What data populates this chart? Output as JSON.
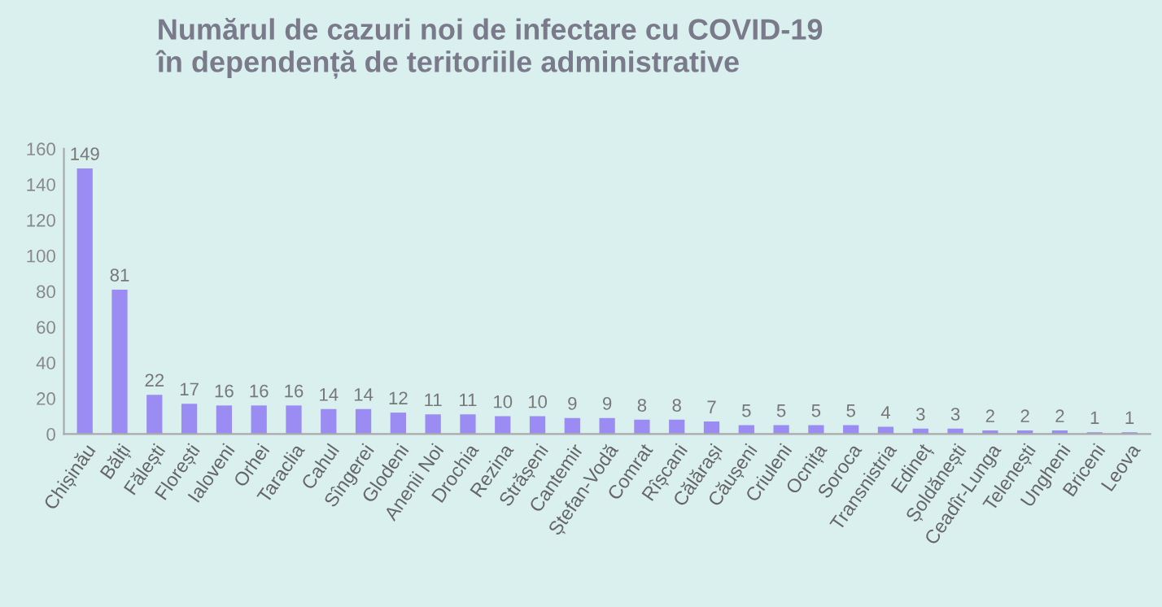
{
  "chart_data": {
    "type": "bar",
    "title": "Numărul de cazuri noi de infectare cu COVID-19\nîn dependență de teritoriile administrative",
    "categories": [
      "Chișinău",
      "Bălți",
      "Fălești",
      "Florești",
      "Ialoveni",
      "Orhei",
      "Taraclia",
      "Cahul",
      "Sîngerei",
      "Glodeni",
      "Anenii Noi",
      "Drochia",
      "Rezina",
      "Strășeni",
      "Cantemir",
      "Ștefan-Vodă",
      "Comrat",
      "Rîșcani",
      "Călărași",
      "Căușeni",
      "Criuleni",
      "Ocnița",
      "Soroca",
      "Transnistria",
      "Edineț",
      "Șoldănești",
      "Ceadîr-Lunga",
      "Telenești",
      "Ungheni",
      "Briceni",
      "Leova"
    ],
    "values": [
      149,
      81,
      22,
      17,
      16,
      16,
      16,
      14,
      14,
      12,
      11,
      11,
      10,
      10,
      9,
      9,
      8,
      8,
      7,
      5,
      5,
      5,
      5,
      4,
      3,
      3,
      2,
      2,
      2,
      1,
      1
    ],
    "color": "#9a8cf2",
    "ylim": [
      0,
      160
    ],
    "yticks": [
      0,
      20,
      40,
      60,
      80,
      100,
      120,
      140,
      160
    ],
    "data_labels": true,
    "grid": false,
    "legend": false
  }
}
